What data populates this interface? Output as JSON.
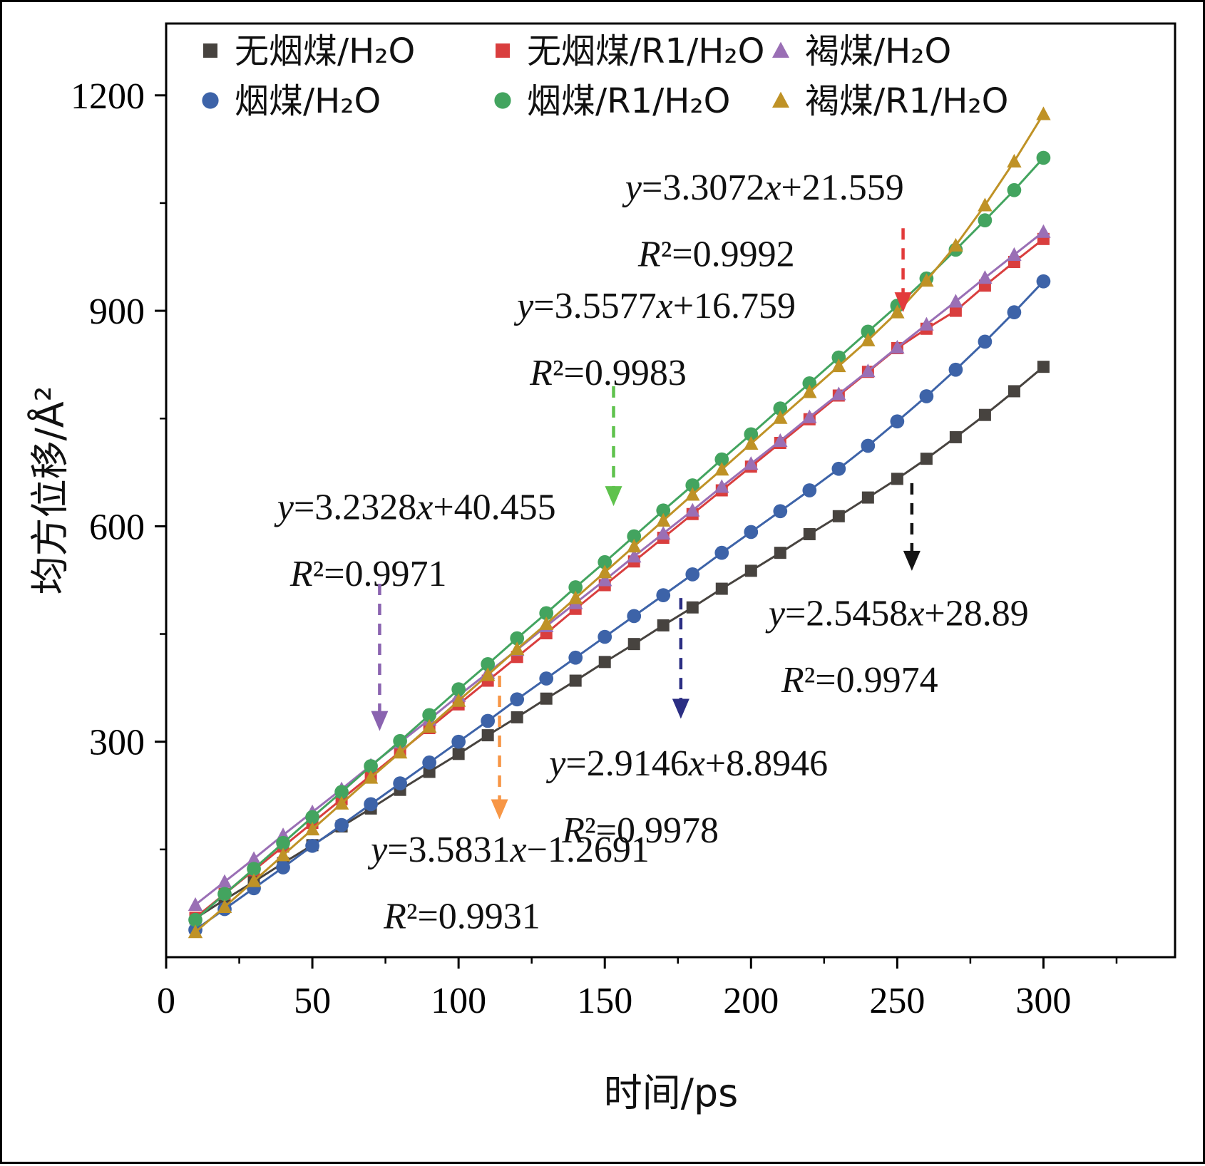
{
  "chart_data": {
    "type": "line",
    "markers": true,
    "title": "",
    "xlabel": "时间/ps",
    "ylabel": "均方位移/Å²",
    "xlim": [
      0,
      345
    ],
    "ylim": [
      0,
      1300
    ],
    "xticks": [
      0,
      50,
      100,
      150,
      200,
      250,
      300
    ],
    "yticks": [
      300,
      600,
      900,
      1200
    ],
    "grid": false,
    "legend_position": "top-inside",
    "x": [
      10,
      20,
      30,
      40,
      50,
      60,
      70,
      80,
      90,
      100,
      110,
      120,
      130,
      140,
      150,
      160,
      170,
      180,
      190,
      200,
      210,
      220,
      230,
      240,
      250,
      260,
      270,
      280,
      290,
      300
    ],
    "series": [
      {
        "key": "anthracite-h2o",
        "name": "无烟煤/H₂O",
        "marker": "square",
        "color": "#47433f",
        "values": [
          54,
          80,
          105,
          131,
          156,
          182,
          207,
          233,
          258,
          283,
          309,
          334,
          360,
          385,
          411,
          436,
          462,
          487,
          513,
          538,
          563,
          589,
          614,
          640,
          666,
          694,
          724,
          755,
          788,
          822
        ]
      },
      {
        "key": "anthracite-r1-h2o",
        "name": "无烟煤/R1/H₂O",
        "marker": "square",
        "color": "#d93e3e",
        "values": [
          55,
          88,
          121,
          154,
          187,
          220,
          253,
          286,
          319,
          352,
          385,
          418,
          451,
          485,
          518,
          551,
          584,
          617,
          650,
          683,
          716,
          749,
          782,
          815,
          848,
          875,
          900,
          935,
          968,
          1000
        ]
      },
      {
        "key": "lignite-h2o",
        "name": "褐煤/H₂O",
        "marker": "triangle",
        "color": "#9a6fb5",
        "values": [
          73,
          105,
          137,
          170,
          202,
          234,
          267,
          299,
          331,
          364,
          396,
          428,
          461,
          493,
          525,
          558,
          590,
          622,
          655,
          687,
          719,
          752,
          784,
          816,
          849,
          881,
          913,
          946,
          978,
          1010
        ]
      },
      {
        "key": "bituminous-h2o",
        "name": "烟煤/H₂O",
        "marker": "circle",
        "color": "#3d63a8",
        "values": [
          38,
          67,
          96,
          125,
          155,
          184,
          213,
          242,
          271,
          300,
          329,
          359,
          388,
          417,
          446,
          475,
          504,
          533,
          563,
          592,
          621,
          650,
          680,
          712,
          746,
          781,
          818,
          857,
          898,
          941
        ]
      },
      {
        "key": "bituminous-r1-h2o",
        "name": "烟煤/R1/H₂O",
        "marker": "circle",
        "color": "#43a45f",
        "values": [
          52,
          88,
          123,
          159,
          195,
          230,
          266,
          301,
          337,
          373,
          408,
          444,
          479,
          515,
          550,
          586,
          622,
          657,
          693,
          728,
          764,
          799,
          835,
          871,
          907,
          945,
          985,
          1026,
          1068,
          1113
        ]
      },
      {
        "key": "lignite-r1-h2o",
        "name": "褐煤/R1/H₂O",
        "marker": "triangle",
        "color": "#bf9226",
        "values": [
          35,
          70,
          106,
          142,
          178,
          214,
          250,
          285,
          321,
          357,
          393,
          429,
          464,
          500,
          536,
          572,
          608,
          644,
          679,
          715,
          751,
          787,
          823,
          859,
          898,
          942,
          991,
          1047,
          1108,
          1174
        ]
      }
    ],
    "annotations": [
      {
        "key": "anthracite-r1-h2o",
        "line1": "y=3.3072x+21.559",
        "line2": "R²=0.9992",
        "text_x": 157,
        "text_y": 1055,
        "arrow": {
          "x": 252,
          "y_from": 1015,
          "y_to": 898,
          "color": "#e23b3b"
        }
      },
      {
        "key": "bituminous-r1-h2o",
        "line1": "y=3.5577x+16.759",
        "line2": "R²=0.9983",
        "text_x": 120,
        "text_y": 890,
        "arrow": {
          "x": 153,
          "y_from": 795,
          "y_to": 628,
          "color": "#5fc24d"
        }
      },
      {
        "key": "lignite-h2o",
        "line1": "y=3.2328x+40.455",
        "line2": "R²=0.9971",
        "text_x": 38,
        "text_y": 610,
        "arrow": {
          "x": 73,
          "y_from": 520,
          "y_to": 315,
          "color": "#8a63b0"
        }
      },
      {
        "key": "anthracite-h2o",
        "line1": "y=2.5458x+28.89",
        "line2": "R²=0.9974",
        "text_x": 206,
        "text_y": 462,
        "arrow": {
          "x": 255,
          "y_from": 660,
          "y_to": 538,
          "color": "#141414"
        }
      },
      {
        "key": "bituminous-h2o",
        "line1": "y=2.9146x+8.8946",
        "line2": "R²=0.9978",
        "text_x": 131,
        "text_y": 253,
        "arrow": {
          "x": 176,
          "y_from": 500,
          "y_to": 332,
          "color": "#2b2e83"
        }
      },
      {
        "key": "lignite-r1-h2o",
        "line1": "y=3.5831x−1.2691",
        "line2": "R²=0.9931",
        "text_x": 70,
        "text_y": 133,
        "arrow": {
          "x": 114,
          "y_from": 392,
          "y_to": 192,
          "color": "#f79646"
        }
      }
    ]
  }
}
